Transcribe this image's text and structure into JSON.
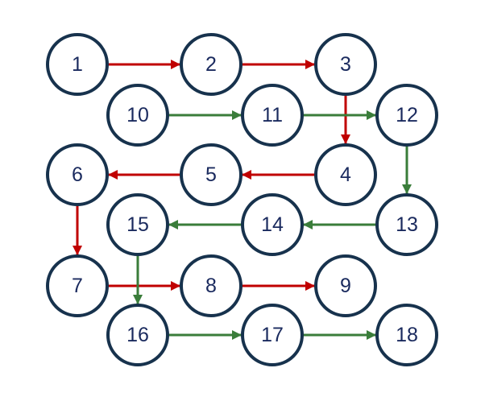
{
  "colors": {
    "path_a": "#c00000",
    "path_b": "#3a7d3a",
    "node_stroke": "#17324d",
    "label": "#1a2a5e"
  },
  "nodes": [
    {
      "id": "1",
      "label": "1"
    },
    {
      "id": "2",
      "label": "2"
    },
    {
      "id": "3",
      "label": "3"
    },
    {
      "id": "10",
      "label": "10"
    },
    {
      "id": "11",
      "label": "11"
    },
    {
      "id": "12",
      "label": "12"
    },
    {
      "id": "6",
      "label": "6"
    },
    {
      "id": "5",
      "label": "5"
    },
    {
      "id": "4",
      "label": "4"
    },
    {
      "id": "15",
      "label": "15"
    },
    {
      "id": "14",
      "label": "14"
    },
    {
      "id": "13",
      "label": "13"
    },
    {
      "id": "7",
      "label": "7"
    },
    {
      "id": "8",
      "label": "8"
    },
    {
      "id": "9",
      "label": "9"
    },
    {
      "id": "16",
      "label": "16"
    },
    {
      "id": "17",
      "label": "17"
    },
    {
      "id": "18",
      "label": "18"
    }
  ],
  "edges": [
    {
      "from": "1",
      "to": "2",
      "path": "path_a"
    },
    {
      "from": "2",
      "to": "3",
      "path": "path_a"
    },
    {
      "from": "3",
      "to": "4",
      "path": "path_a"
    },
    {
      "from": "4",
      "to": "5",
      "path": "path_a"
    },
    {
      "from": "5",
      "to": "6",
      "path": "path_a"
    },
    {
      "from": "6",
      "to": "7",
      "path": "path_a"
    },
    {
      "from": "7",
      "to": "8",
      "path": "path_a"
    },
    {
      "from": "8",
      "to": "9",
      "path": "path_a"
    },
    {
      "from": "10",
      "to": "11",
      "path": "path_b"
    },
    {
      "from": "11",
      "to": "12",
      "path": "path_b"
    },
    {
      "from": "12",
      "to": "13",
      "path": "path_b"
    },
    {
      "from": "13",
      "to": "14",
      "path": "path_b"
    },
    {
      "from": "14",
      "to": "15",
      "path": "path_b"
    },
    {
      "from": "15",
      "to": "16",
      "path": "path_b"
    },
    {
      "from": "16",
      "to": "17",
      "path": "path_b"
    },
    {
      "from": "17",
      "to": "18",
      "path": "path_b"
    }
  ]
}
